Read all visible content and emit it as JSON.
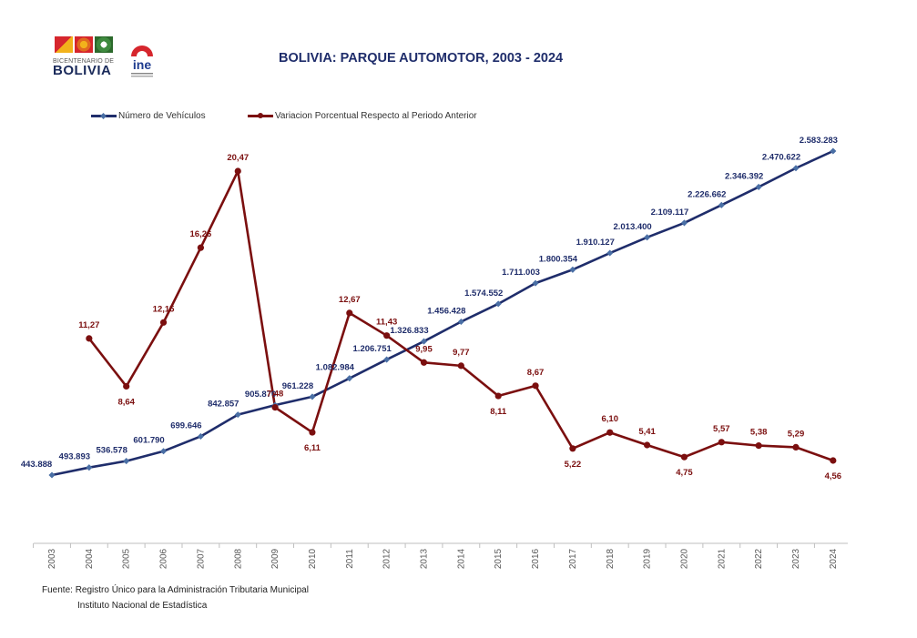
{
  "header": {
    "title": "BOLIVIA: PARQUE AUTOMOTOR, 2003 - 2024",
    "logo_bicentenario_small": "BICENTENARIO DE",
    "logo_bicentenario_big": "BOLIVIA",
    "logo_ine_text": "ine"
  },
  "colors": {
    "vehicles": "#1f2d6b",
    "variation": "#7b0f0f",
    "axis": "#bfbfbf"
  },
  "chart_data": {
    "type": "line",
    "title": "BOLIVIA: PARQUE AUTOMOTOR, 2003 - 2024",
    "categories": [
      "2003",
      "2004",
      "2005",
      "2006",
      "2007",
      "2008",
      "2009",
      "2010",
      "2011",
      "2012",
      "2013",
      "2014",
      "2015",
      "2016",
      "2017",
      "2018",
      "2019",
      "2020",
      "2021",
      "2022",
      "2023",
      "2024"
    ],
    "series": [
      {
        "name": "Número de Vehículos",
        "values": [
          443888,
          493893,
          536578,
          601790,
          699646,
          842857,
          905870,
          961228,
          1082984,
          1206751,
          1326833,
          1456428,
          1574552,
          1711003,
          1800354,
          1910127,
          2013400,
          2109117,
          2226662,
          2346392,
          2470622,
          2583283
        ],
        "labels": [
          "443.888",
          "493.893",
          "536.578",
          "601.790",
          "699.646",
          "842.857",
          "905.870",
          "961.228",
          "1.082.984",
          "1.206.751",
          "1.326.833",
          "1.456.428",
          "1.574.552",
          "1.711.003",
          "1.800.354",
          "1.910.127",
          "2.013.400",
          "2.109.117",
          "2.226.662",
          "2.346.392",
          "2.470.622",
          "2.583.283"
        ]
      },
      {
        "name": "Variacion Porcentual Respecto al Periodo Anterior",
        "values": [
          null,
          11.27,
          8.64,
          12.15,
          16.26,
          20.47,
          7.48,
          6.11,
          12.67,
          11.43,
          9.95,
          9.77,
          8.11,
          8.67,
          5.22,
          6.1,
          5.41,
          4.75,
          5.57,
          5.38,
          5.29,
          4.56
        ],
        "labels": [
          null,
          "11,27",
          "8,64",
          "12,15",
          "16,26",
          "20,47",
          "7,48",
          "6,11",
          "12,67",
          "11,43",
          "9,95",
          "9,77",
          "8,11",
          "8,67",
          "5,22",
          "6,10",
          "5,41",
          "4,75",
          "5,57",
          "5,38",
          "5,29",
          "4,56"
        ]
      }
    ],
    "xlabel": "",
    "ylabel": "",
    "legend_position": "top-left",
    "grid": false
  },
  "source": {
    "line1": "Fuente: Registro Único para la Administración Tributaria Municipal",
    "line2": "Instituto Nacional de Estadística"
  }
}
